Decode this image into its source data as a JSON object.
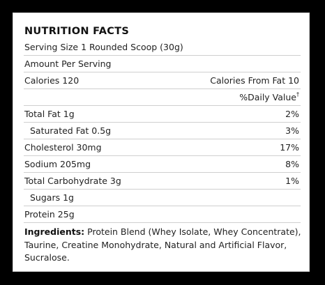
{
  "title": "NUTRITION FACTS",
  "serving_size": "Serving Size 1 Rounded Scoop (30g)",
  "amount_per_serving": "Amount Per Serving",
  "calories": {
    "label": "Calories 120",
    "from_fat": "Calories From Fat 10"
  },
  "daily_value_header": "%Daily Value",
  "daily_value_mark": "†",
  "nutrients": [
    {
      "label": "Total Fat 1g",
      "value": "2%"
    },
    {
      "label": "Saturated Fat 0.5g",
      "value": "3%"
    },
    {
      "label": "Cholesterol 30mg",
      "value": "17%"
    },
    {
      "label": "Sodium 205mg",
      "value": "8%"
    },
    {
      "label": "Total Carbohydrate 3g",
      "value": "1%"
    },
    {
      "label": "Sugars 1g",
      "value": ""
    },
    {
      "label": "Protein 25g",
      "value": ""
    }
  ],
  "ingredients": {
    "label": "Ingredients:",
    "text": " Protein Blend (Whey Isolate, Whey Concentrate), Taurine, Creatine Monohydrate, Natural and Artificial Flavor, Sucralose."
  }
}
